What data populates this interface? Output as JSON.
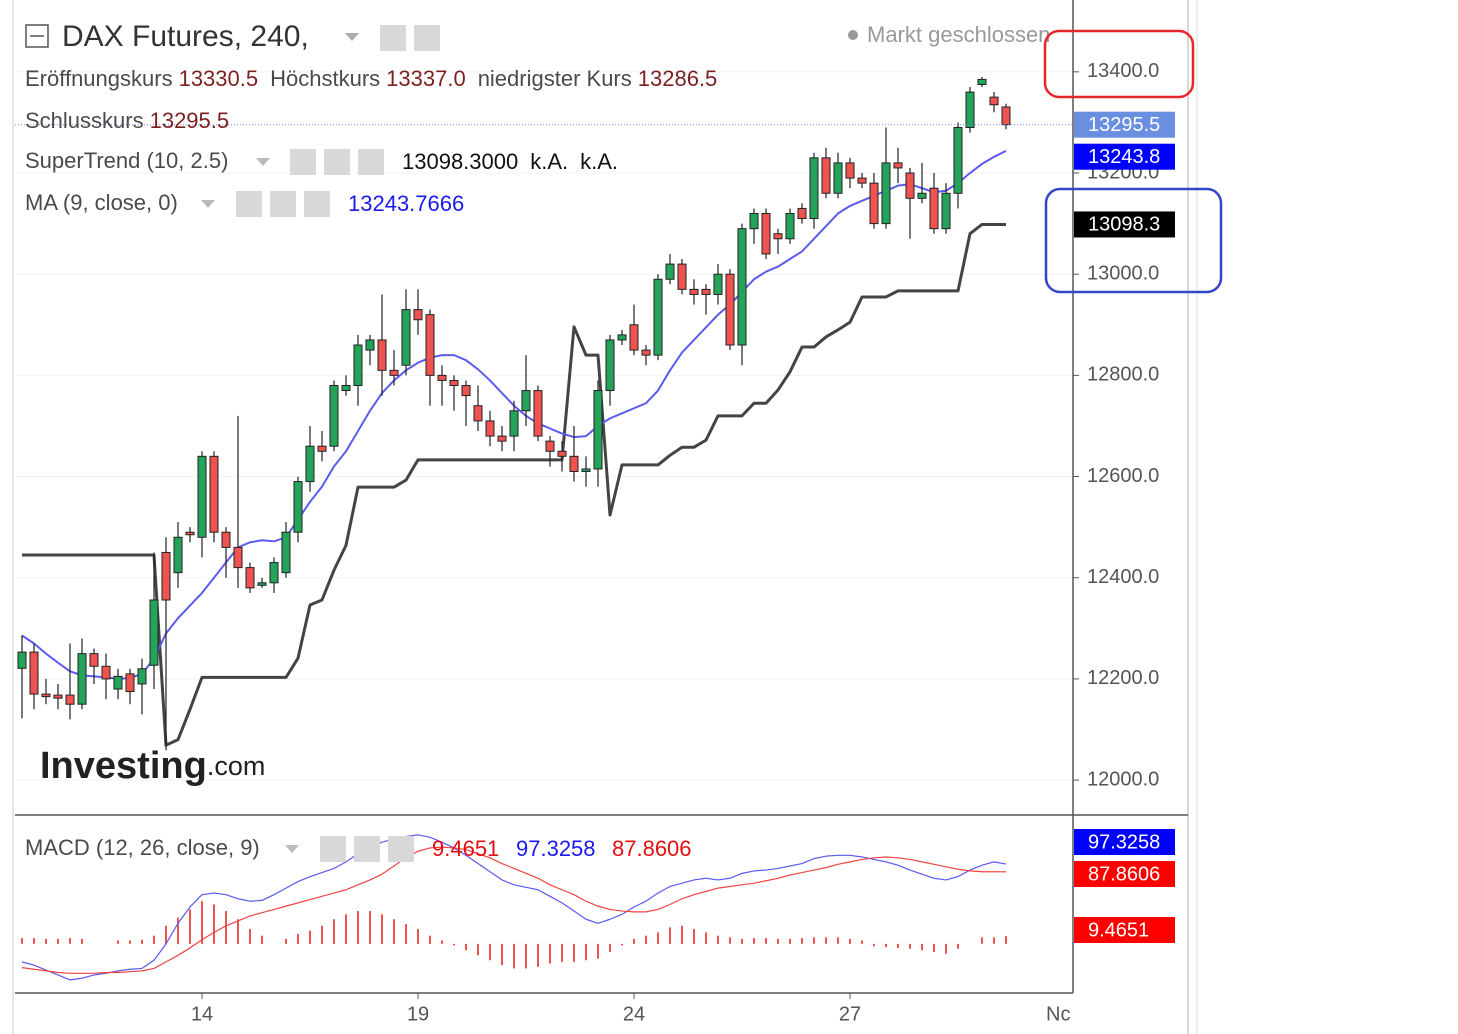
{
  "chart_data": [
    {
      "type": "candlestick",
      "title": "DAX Futures, 240,",
      "status": "Markt geschlossen",
      "ohlc_legend": [
        {
          "name": "Eröffnungskurs",
          "value": "13330.5"
        },
        {
          "name": "Höchstkurs",
          "value": "13337.0"
        },
        {
          "name": "niedrigster Kurs",
          "value": "13286.5"
        }
      ],
      "close_legend": {
        "name": "Schlusskurs",
        "value": "13295.5"
      },
      "categories": [
        null,
        null,
        null,
        null,
        null,
        null,
        null,
        null,
        null,
        null,
        null,
        null,
        null,
        null,
        null,
        "14",
        null,
        null,
        null,
        null,
        null,
        null,
        null,
        null,
        null,
        null,
        null,
        null,
        null,
        null,
        null,
        null,
        null,
        "19",
        null,
        null,
        null,
        null,
        null,
        null,
        null,
        null,
        null,
        null,
        null,
        null,
        null,
        null,
        null,
        null,
        null,
        "24",
        null,
        null,
        null,
        null,
        null,
        null,
        null,
        null,
        null,
        null,
        null,
        null,
        null,
        null,
        null,
        null,
        null,
        "27",
        null,
        null,
        null,
        null,
        null,
        null,
        null,
        null,
        null,
        null,
        null,
        null,
        null
      ],
      "open": [
        12221,
        12253,
        12170,
        12168,
        12168,
        12150,
        12250,
        12225,
        12180,
        12210,
        12190,
        12227,
        12450,
        12410,
        12490,
        12480,
        12640,
        12490,
        12460,
        12420,
        12385,
        12390,
        12410,
        12490,
        12590,
        12660,
        12660,
        12770,
        12780,
        12850,
        12870,
        12810,
        12820,
        12930,
        12920,
        12800,
        12790,
        12780,
        12740,
        12710,
        12680,
        12680,
        12730,
        12770,
        12670,
        12650,
        12640,
        12610,
        12615,
        12770,
        12870,
        12900,
        12850,
        12840,
        12990,
        13020,
        12970,
        12970,
        12960,
        13000,
        12860,
        13090,
        13120,
        13080,
        13070,
        13130,
        13110,
        13230,
        13160,
        13220,
        13190,
        13180,
        13100,
        13220,
        13200,
        13150,
        13170,
        13090,
        13160,
        13290,
        13375,
        13350,
        13330.5
      ],
      "high": [
        12286,
        12270,
        12200,
        12190,
        12270,
        12280,
        12260,
        12250,
        12220,
        12220,
        12240,
        12450,
        12480,
        12510,
        12500,
        12650,
        12650,
        12500,
        12720,
        12430,
        12400,
        12440,
        12510,
        12600,
        12700,
        12690,
        12790,
        12800,
        12880,
        12880,
        12960,
        12850,
        12970,
        12970,
        12930,
        12820,
        12800,
        12790,
        12780,
        12730,
        12700,
        12750,
        12840,
        12780,
        12680,
        12670,
        12700,
        12640,
        12790,
        12880,
        12890,
        12940,
        12860,
        13000,
        13040,
        13030,
        12990,
        12980,
        13020,
        13010,
        13100,
        13130,
        13130,
        13090,
        13130,
        13140,
        13240,
        13250,
        13240,
        13230,
        13200,
        13200,
        13290,
        13250,
        13210,
        13220,
        13200,
        13180,
        13300,
        13370,
        13390,
        13360,
        13337
      ],
      "low": [
        12122,
        12140,
        12150,
        12140,
        12120,
        12140,
        12190,
        12160,
        12160,
        12150,
        12130,
        12180,
        12059,
        12380,
        12470,
        12440,
        12470,
        12400,
        12380,
        12370,
        12380,
        12370,
        12400,
        12470,
        12570,
        12630,
        12650,
        12760,
        12740,
        12820,
        12760,
        12780,
        12800,
        12880,
        12740,
        12740,
        12730,
        12700,
        12690,
        12660,
        12650,
        12650,
        12700,
        12670,
        12620,
        12610,
        12590,
        12580,
        12580,
        12740,
        12860,
        12840,
        12820,
        12830,
        12980,
        12960,
        12940,
        12920,
        12940,
        12850,
        12820,
        13060,
        13030,
        13040,
        13060,
        13100,
        13090,
        13150,
        13150,
        13170,
        13170,
        13090,
        13090,
        13180,
        13070,
        13140,
        13080,
        13080,
        13130,
        13280,
        13370,
        13320,
        13286.5
      ],
      "close": [
        12253,
        12170,
        12165,
        12162,
        12150,
        12250,
        12225,
        12200,
        12205,
        12175,
        12220,
        12356,
        12356,
        12480,
        12485,
        12640,
        12490,
        12460,
        12420,
        12380,
        12390,
        12430,
        12490,
        12590,
        12660,
        12650,
        12780,
        12780,
        12860,
        12870,
        12810,
        12800,
        12930,
        12910,
        12800,
        12790,
        12780,
        12760,
        12710,
        12680,
        12670,
        12730,
        12770,
        12680,
        12650,
        12640,
        12610,
        12615,
        12770,
        12870,
        12880,
        12850,
        12840,
        12990,
        13020,
        12970,
        12960,
        12960,
        13000,
        12860,
        13090,
        13120,
        13040,
        13070,
        13120,
        13110,
        13230,
        13160,
        13220,
        13190,
        13180,
        13100,
        13220,
        13210,
        13150,
        13160,
        13090,
        13160,
        13290,
        13360,
        13385,
        13335,
        13295.5
      ],
      "up_color": "#22a55a",
      "down_color": "#ef5350",
      "last_price_label": "13295.5",
      "last_price_color": "#6a8fe0",
      "indicators": [
        {
          "name": "SuperTrend (10, 2.5)",
          "readout": [
            "13098.3000",
            "k.A.",
            "k.A."
          ],
          "color": "#444444",
          "label_color": "#000000",
          "price_label": "13098.3",
          "values": [
            12445,
            12445,
            12445,
            12445,
            12445,
            12445,
            12445,
            12445,
            12445,
            12445,
            12445,
            12445,
            12069,
            12080,
            12140,
            12203,
            12203,
            12203,
            12203,
            12203,
            12203,
            12203,
            12203,
            12241,
            12346,
            12356,
            12415,
            12464,
            12579,
            12579,
            12579,
            12579,
            12593,
            12633,
            12633,
            12633,
            12633,
            12633,
            12633,
            12633,
            12633,
            12633,
            12633,
            12633,
            12633,
            12633,
            12896,
            12840,
            12840,
            12524,
            12623,
            12623,
            12623,
            12623,
            12642,
            12658,
            12658,
            12672,
            12720,
            12720,
            12720,
            12745,
            12745,
            12771,
            12807,
            12856,
            12856,
            12876,
            12890,
            12905,
            12955,
            12955,
            12955,
            12967,
            12967,
            12967,
            12967,
            12967,
            12967,
            13080,
            13098.3,
            13098.3,
            13098.3
          ]
        },
        {
          "name": "MA (9, close, 0)",
          "readout": [
            "13243.7666"
          ],
          "color": "#5b5bf0",
          "label_color": "#0000ff",
          "price_label": "13243.8",
          "values": [
            12286,
            12270,
            12250,
            12232,
            12215,
            12207,
            12205,
            12203,
            12200,
            12202,
            12210,
            12240,
            12290,
            12320,
            12345,
            12370,
            12400,
            12430,
            12460,
            12470,
            12474,
            12472,
            12480,
            12515,
            12550,
            12580,
            12620,
            12650,
            12690,
            12730,
            12765,
            12790,
            12810,
            12825,
            12835,
            12840,
            12840,
            12830,
            12812,
            12790,
            12765,
            12740,
            12720,
            12705,
            12695,
            12685,
            12678,
            12680,
            12700,
            12715,
            12725,
            12735,
            12745,
            12770,
            12810,
            12845,
            12870,
            12895,
            12920,
            12940,
            12965,
            12990,
            13005,
            13015,
            13030,
            13045,
            13070,
            13095,
            13120,
            13135,
            13145,
            13155,
            13165,
            13175,
            13178,
            13170,
            13162,
            13165,
            13180,
            13200,
            13218,
            13232,
            13243.8
          ]
        }
      ],
      "ylim": [
        11931,
        13542
      ],
      "yticks": [
        {
          "value": 12000,
          "label": "12000.0"
        },
        {
          "value": 12200,
          "label": "12200.0"
        },
        {
          "value": 12400,
          "label": "12400.0"
        },
        {
          "value": 12600,
          "label": "12600.0"
        },
        {
          "value": 12800,
          "label": "12800.0"
        },
        {
          "value": 13000,
          "label": "13000.0"
        },
        {
          "value": 13200,
          "label": "13200.0"
        },
        {
          "value": 13400,
          "label": "13400.0"
        }
      ],
      "grid": true,
      "x_cut_label": "Nc",
      "watermark": "Investing",
      "watermark_suffix": ".com"
    },
    {
      "type": "macd",
      "name": "MACD (12, 26, close, 9)",
      "macd": {
        "readout": "97.3258",
        "color": "#5b5bf0",
        "label_color": "#0000ff",
        "values": [
          -22,
          -26,
          -32,
          -38,
          -44,
          -42,
          -38,
          -36,
          -33,
          -31,
          -30,
          -20,
          0,
          25,
          45,
          60,
          62,
          60,
          55,
          52,
          53,
          60,
          68,
          76,
          82,
          87,
          92,
          100,
          110,
          118,
          124,
          128,
          131,
          133,
          130,
          124,
          117,
          108,
          98,
          88,
          78,
          72,
          69,
          66,
          58,
          50,
          40,
          30,
          25,
          30,
          36,
          45,
          52,
          62,
          70,
          74,
          78,
          80,
          78,
          80,
          86,
          89,
          90,
          92,
          95,
          98,
          104,
          107,
          108,
          108,
          106,
          103,
          100,
          96,
          90,
          85,
          80,
          78,
          82,
          90,
          96,
          100,
          97.3258
        ]
      },
      "signal": {
        "readout": "87.8606",
        "color": "#ef4444",
        "label_color": "#ff0000",
        "values": [
          -29,
          -31,
          -33,
          -35,
          -36,
          -36,
          -36,
          -35,
          -35,
          -34,
          -33,
          -30,
          -22,
          -14,
          -5,
          5,
          14,
          22,
          28,
          34,
          38,
          42,
          46,
          50,
          54,
          58,
          62,
          66,
          72,
          78,
          85,
          95,
          105,
          113,
          117,
          118,
          117,
          115,
          110,
          105,
          98,
          92,
          86,
          80,
          72,
          66,
          60,
          52,
          46,
          42,
          40,
          39,
          39,
          42,
          48,
          55,
          60,
          64,
          68,
          70,
          72,
          74,
          77,
          80,
          84,
          87,
          90,
          93,
          97,
          100,
          103,
          105,
          106,
          105,
          103,
          100,
          97,
          94,
          91,
          89,
          88,
          88,
          87.8606
        ]
      },
      "histogram": {
        "readout": "9.4651",
        "color": "#ef5350",
        "label_color": "#ff0000",
        "values": [
          7,
          7,
          6,
          6,
          7,
          6,
          null,
          null,
          4,
          4,
          5,
          10,
          22,
          32,
          42,
          52,
          48,
          40,
          30,
          18,
          10,
          null,
          6,
          12,
          16,
          22,
          30,
          36,
          40,
          40,
          36,
          30,
          24,
          18,
          10,
          4,
          -2,
          -8,
          -14,
          -20,
          -26,
          -30,
          -30,
          -28,
          -24,
          -22,
          -22,
          -20,
          -18,
          -10,
          -2,
          6,
          10,
          14,
          20,
          22,
          18,
          14,
          10,
          8,
          6,
          7,
          7,
          6,
          6,
          7,
          8,
          8,
          8,
          6,
          4,
          -3,
          -4,
          -5,
          -6,
          -8,
          -10,
          -12,
          -6,
          null,
          8,
          8,
          9.4651
        ]
      },
      "ylim": [
        -60,
        156
      ]
    }
  ]
}
